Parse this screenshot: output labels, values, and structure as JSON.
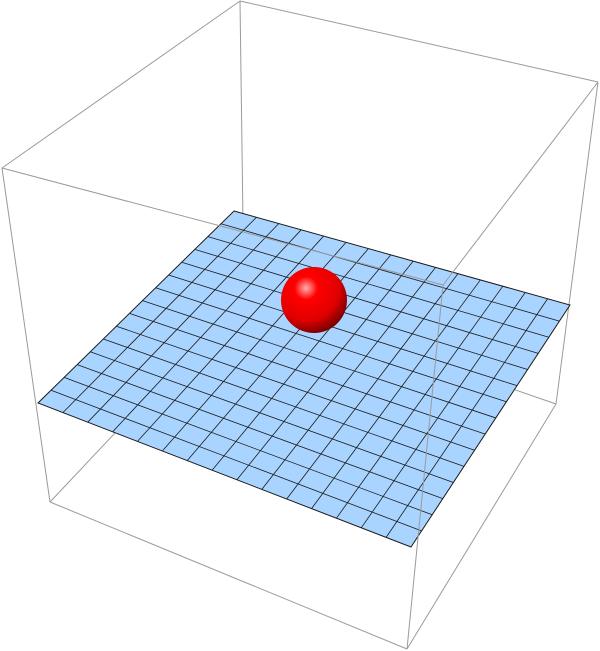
{
  "scene": {
    "box_edge_color": "#9a9a9a",
    "plane_fill_color": "#a8d4ff",
    "plane_grid_color": "#1a1a1a",
    "grid_divisions": 15,
    "sphere_color": "#ff0000",
    "sphere_highlight_color": "#ffb0b0",
    "sphere_shadow_color": "#7a0000",
    "background_color": "#ffffff"
  }
}
